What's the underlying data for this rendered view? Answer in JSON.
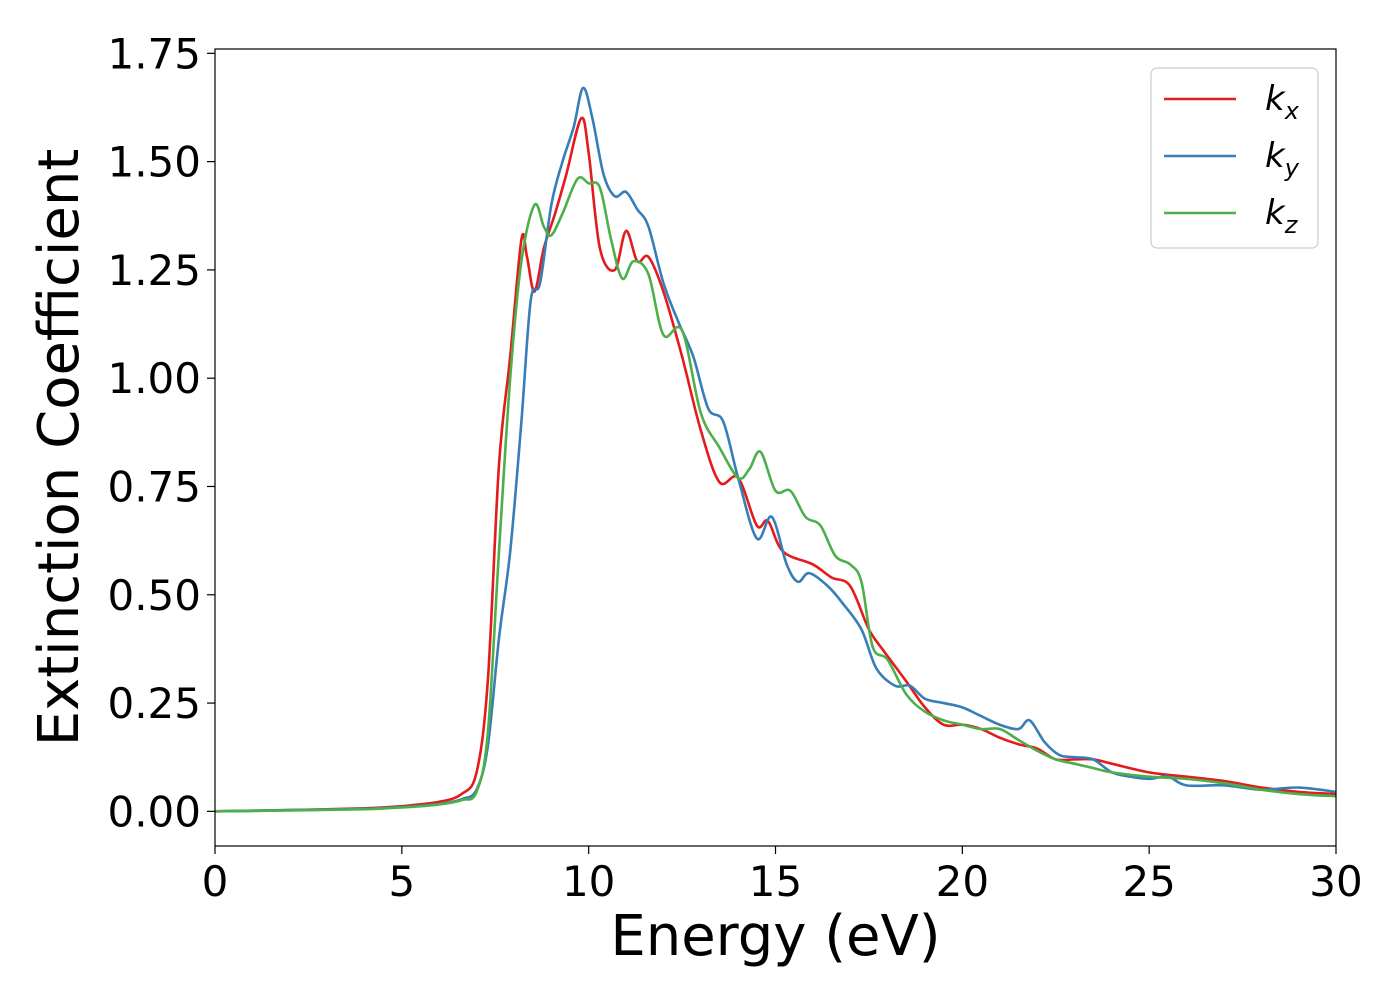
{
  "chart_data": {
    "type": "line",
    "title": "",
    "xlabel": "Energy (eV)",
    "ylabel": "Extinction Coefficient",
    "xlim": [
      0,
      30
    ],
    "ylim": [
      -0.08,
      1.76
    ],
    "xticks": [
      0,
      5,
      10,
      15,
      20,
      25,
      30
    ],
    "xtick_labels": [
      "0",
      "5",
      "10",
      "15",
      "20",
      "25",
      "30"
    ],
    "yticks": [
      0,
      0.25,
      0.5,
      0.75,
      1.0,
      1.25,
      1.5,
      1.75
    ],
    "ytick_labels": [
      "0.00",
      "0.25",
      "0.50",
      "0.75",
      "1.00",
      "1.25",
      "1.50",
      "1.75"
    ],
    "grid": false,
    "legend_position": "top-right",
    "series": [
      {
        "name": "k_x",
        "label_base": "k",
        "label_sub": "x",
        "color": "#e41a1c",
        "points": [
          [
            0,
            0.0
          ],
          [
            2,
            0.003
          ],
          [
            4,
            0.007
          ],
          [
            5,
            0.012
          ],
          [
            6,
            0.022
          ],
          [
            6.6,
            0.04
          ],
          [
            7.0,
            0.09
          ],
          [
            7.3,
            0.3
          ],
          [
            7.6,
            0.8
          ],
          [
            7.9,
            1.05
          ],
          [
            8.2,
            1.32
          ],
          [
            8.35,
            1.28
          ],
          [
            8.55,
            1.2
          ],
          [
            8.8,
            1.3
          ],
          [
            9.1,
            1.38
          ],
          [
            9.4,
            1.47
          ],
          [
            9.8,
            1.6
          ],
          [
            10.0,
            1.52
          ],
          [
            10.3,
            1.3
          ],
          [
            10.7,
            1.25
          ],
          [
            11.0,
            1.34
          ],
          [
            11.3,
            1.27
          ],
          [
            11.6,
            1.28
          ],
          [
            12.0,
            1.2
          ],
          [
            12.5,
            1.05
          ],
          [
            13.0,
            0.88
          ],
          [
            13.5,
            0.76
          ],
          [
            14.0,
            0.77
          ],
          [
            14.5,
            0.66
          ],
          [
            14.8,
            0.67
          ],
          [
            15.2,
            0.6
          ],
          [
            16.0,
            0.57
          ],
          [
            16.5,
            0.54
          ],
          [
            17.0,
            0.52
          ],
          [
            17.5,
            0.42
          ],
          [
            17.9,
            0.37
          ],
          [
            18.5,
            0.3
          ],
          [
            19.0,
            0.24
          ],
          [
            19.5,
            0.2
          ],
          [
            20.0,
            0.2
          ],
          [
            20.5,
            0.19
          ],
          [
            21.0,
            0.17
          ],
          [
            21.5,
            0.155
          ],
          [
            22.0,
            0.145
          ],
          [
            22.5,
            0.12
          ],
          [
            23.0,
            0.12
          ],
          [
            23.5,
            0.12
          ],
          [
            24.0,
            0.11
          ],
          [
            25.0,
            0.09
          ],
          [
            26.0,
            0.08
          ],
          [
            27.0,
            0.07
          ],
          [
            28.0,
            0.055
          ],
          [
            29.0,
            0.045
          ],
          [
            30.0,
            0.04
          ]
        ]
      },
      {
        "name": "k_y",
        "label_base": "k",
        "label_sub": "y",
        "color": "#377eb8",
        "points": [
          [
            0,
            0.0
          ],
          [
            2,
            0.003
          ],
          [
            4,
            0.006
          ],
          [
            5,
            0.01
          ],
          [
            6,
            0.017
          ],
          [
            6.6,
            0.028
          ],
          [
            7.0,
            0.05
          ],
          [
            7.3,
            0.15
          ],
          [
            7.6,
            0.4
          ],
          [
            7.9,
            0.6
          ],
          [
            8.2,
            0.9
          ],
          [
            8.45,
            1.18
          ],
          [
            8.7,
            1.22
          ],
          [
            9.0,
            1.4
          ],
          [
            9.3,
            1.5
          ],
          [
            9.6,
            1.58
          ],
          [
            9.85,
            1.67
          ],
          [
            10.1,
            1.6
          ],
          [
            10.4,
            1.47
          ],
          [
            10.7,
            1.42
          ],
          [
            11.0,
            1.43
          ],
          [
            11.3,
            1.39
          ],
          [
            11.6,
            1.35
          ],
          [
            12.0,
            1.22
          ],
          [
            12.4,
            1.13
          ],
          [
            12.8,
            1.05
          ],
          [
            13.2,
            0.93
          ],
          [
            13.6,
            0.9
          ],
          [
            14.0,
            0.77
          ],
          [
            14.5,
            0.63
          ],
          [
            14.9,
            0.68
          ],
          [
            15.3,
            0.57
          ],
          [
            15.6,
            0.53
          ],
          [
            15.9,
            0.55
          ],
          [
            16.4,
            0.52
          ],
          [
            16.8,
            0.48
          ],
          [
            17.3,
            0.42
          ],
          [
            17.7,
            0.33
          ],
          [
            18.2,
            0.29
          ],
          [
            18.6,
            0.29
          ],
          [
            19.0,
            0.26
          ],
          [
            19.5,
            0.25
          ],
          [
            20.0,
            0.24
          ],
          [
            20.5,
            0.22
          ],
          [
            21.0,
            0.2
          ],
          [
            21.5,
            0.19
          ],
          [
            21.8,
            0.21
          ],
          [
            22.2,
            0.16
          ],
          [
            22.6,
            0.13
          ],
          [
            23.0,
            0.125
          ],
          [
            23.5,
            0.12
          ],
          [
            24.0,
            0.09
          ],
          [
            24.5,
            0.08
          ],
          [
            25.0,
            0.075
          ],
          [
            25.5,
            0.08
          ],
          [
            26.0,
            0.06
          ],
          [
            27.0,
            0.06
          ],
          [
            28.0,
            0.05
          ],
          [
            29.0,
            0.055
          ],
          [
            30.0,
            0.045
          ]
        ]
      },
      {
        "name": "k_z",
        "label_base": "k",
        "label_sub": "z",
        "color": "#4daf4a",
        "points": [
          [
            0,
            0.0
          ],
          [
            2,
            0.002
          ],
          [
            4,
            0.005
          ],
          [
            5,
            0.009
          ],
          [
            6,
            0.016
          ],
          [
            6.6,
            0.026
          ],
          [
            7.0,
            0.045
          ],
          [
            7.3,
            0.18
          ],
          [
            7.6,
            0.6
          ],
          [
            7.9,
            1.0
          ],
          [
            8.2,
            1.27
          ],
          [
            8.55,
            1.4
          ],
          [
            8.8,
            1.35
          ],
          [
            9.0,
            1.33
          ],
          [
            9.3,
            1.38
          ],
          [
            9.7,
            1.46
          ],
          [
            10.0,
            1.45
          ],
          [
            10.3,
            1.44
          ],
          [
            10.6,
            1.32
          ],
          [
            10.9,
            1.23
          ],
          [
            11.2,
            1.27
          ],
          [
            11.6,
            1.24
          ],
          [
            12.0,
            1.1
          ],
          [
            12.5,
            1.11
          ],
          [
            13.0,
            0.92
          ],
          [
            13.5,
            0.84
          ],
          [
            14.0,
            0.77
          ],
          [
            14.3,
            0.79
          ],
          [
            14.6,
            0.83
          ],
          [
            15.0,
            0.74
          ],
          [
            15.4,
            0.74
          ],
          [
            15.8,
            0.68
          ],
          [
            16.2,
            0.66
          ],
          [
            16.6,
            0.59
          ],
          [
            17.0,
            0.57
          ],
          [
            17.3,
            0.53
          ],
          [
            17.6,
            0.38
          ],
          [
            18.0,
            0.35
          ],
          [
            18.5,
            0.27
          ],
          [
            19.0,
            0.23
          ],
          [
            19.5,
            0.21
          ],
          [
            20.0,
            0.2
          ],
          [
            20.5,
            0.19
          ],
          [
            21.0,
            0.19
          ],
          [
            21.5,
            0.165
          ],
          [
            22.0,
            0.14
          ],
          [
            22.5,
            0.12
          ],
          [
            23.0,
            0.11
          ],
          [
            23.5,
            0.1
          ],
          [
            24.0,
            0.09
          ],
          [
            25.0,
            0.08
          ],
          [
            26.0,
            0.075
          ],
          [
            27.0,
            0.065
          ],
          [
            28.0,
            0.05
          ],
          [
            29.0,
            0.04
          ],
          [
            30.0,
            0.035
          ]
        ]
      }
    ]
  }
}
